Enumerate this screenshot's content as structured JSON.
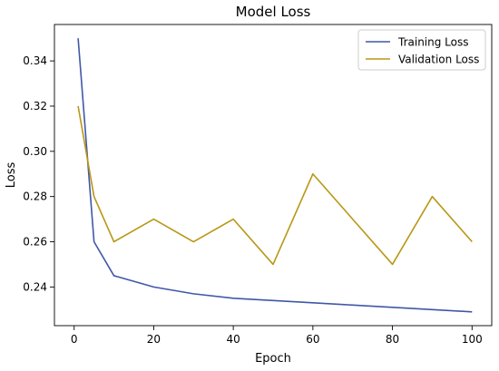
{
  "chart_data": {
    "type": "line",
    "title": "Model Loss",
    "xlabel": "Epoch",
    "ylabel": "Loss",
    "xlim": [
      -4.95,
      104.95
    ],
    "ylim": [
      0.2229,
      0.3561
    ],
    "xticks": [
      0,
      20,
      40,
      60,
      80,
      100
    ],
    "yticks": [
      0.24,
      0.26,
      0.28,
      0.3,
      0.32,
      0.34
    ],
    "xtick_labels": [
      "0",
      "20",
      "40",
      "60",
      "80",
      "100"
    ],
    "ytick_labels": [
      "0.24",
      "0.26",
      "0.28",
      "0.30",
      "0.32",
      "0.34"
    ],
    "grid": false,
    "legend_position": "top-right",
    "series": [
      {
        "name": "Training Loss",
        "color": "#4057a8",
        "x": [
          1,
          5,
          10,
          20,
          30,
          40,
          50,
          60,
          70,
          80,
          90,
          100
        ],
        "values": [
          0.35,
          0.26,
          0.245,
          0.24,
          0.237,
          0.235,
          0.234,
          0.233,
          0.232,
          0.231,
          0.23,
          0.229
        ]
      },
      {
        "name": "Validation Loss",
        "color": "#b89715",
        "x": [
          1,
          5,
          10,
          20,
          30,
          40,
          50,
          60,
          70,
          80,
          90,
          100
        ],
        "values": [
          0.32,
          0.28,
          0.26,
          0.27,
          0.26,
          0.27,
          0.25,
          0.29,
          0.27,
          0.25,
          0.28,
          0.26
        ]
      }
    ]
  }
}
